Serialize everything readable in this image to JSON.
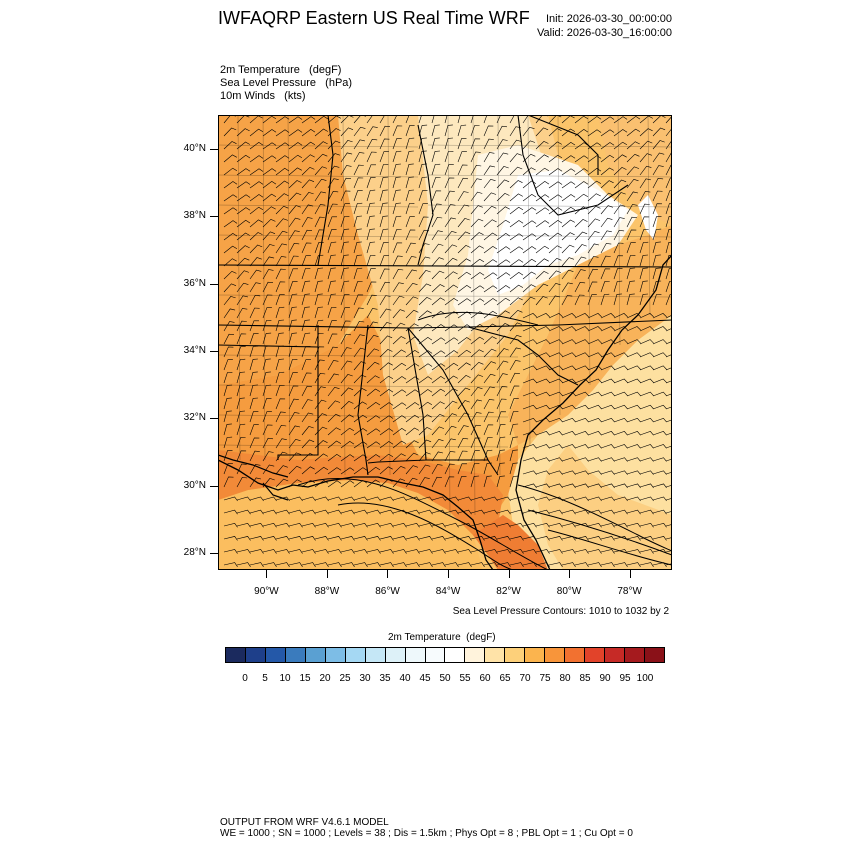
{
  "header": {
    "title": "IWFAQRP Eastern US Real Time WRF",
    "init": "Init: 2026-03-30_00:00:00",
    "valid": "Valid: 2026-03-30_16:00:00"
  },
  "fields": [
    "2m Temperature   (degF)",
    "Sea Level Pressure   (hPa)",
    "10m Winds   (kts)"
  ],
  "map": {
    "lat_range": [
      27.5,
      41.0
    ],
    "lon_range": [
      -91.6,
      -76.6
    ],
    "lat_ticks": [
      "40°N",
      "38°N",
      "36°N",
      "34°N",
      "32°N",
      "30°N",
      "28°N"
    ],
    "lat_tick_values": [
      40,
      38,
      36,
      34,
      32,
      30,
      28
    ],
    "lon_ticks": [
      "90°W",
      "88°W",
      "86°W",
      "84°W",
      "82°W",
      "80°W",
      "78°W"
    ],
    "lon_tick_values": [
      -90,
      -88,
      -86,
      -84,
      -82,
      -80,
      -78
    ],
    "slp_note": "Sea Level Pressure Contours: 1010 to 1032 by 2"
  },
  "colorbar": {
    "title": "2m Temperature  (degF)",
    "labels": [
      "0",
      "5",
      "10",
      "15",
      "20",
      "25",
      "30",
      "35",
      "40",
      "45",
      "50",
      "55",
      "60",
      "65",
      "70",
      "75",
      "80",
      "85",
      "90",
      "95",
      "100"
    ],
    "colors": [
      "#1b2a5e",
      "#1e3f8a",
      "#2458a8",
      "#3a7bbd",
      "#5aa0d2",
      "#7dbde6",
      "#a5d8f3",
      "#c5e7f6",
      "#ddf1f8",
      "#eef8fb",
      "#f7fbfd",
      "#ffffff",
      "#fff3dc",
      "#ffe3a8",
      "#fdd07a",
      "#fbb44e",
      "#f8953a",
      "#f27130",
      "#e2432a",
      "#c62a26",
      "#a51a1e",
      "#8a1118"
    ]
  },
  "footer": {
    "line1": "OUTPUT FROM WRF V4.6.1 MODEL",
    "line2": "WE = 1000 ; SN = 1000 ; Levels = 38 ; Dis = 1.5km ; Phys Opt = 8 ; PBL Opt = 1 ; Cu Opt = 0"
  }
}
